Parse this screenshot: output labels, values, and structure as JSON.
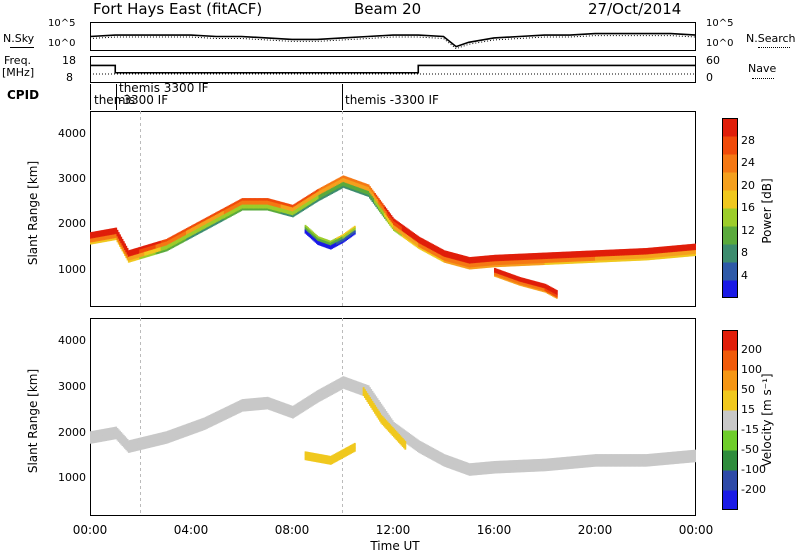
{
  "header": {
    "station": "Fort Hays East (fitACF)",
    "beam": "Beam 20",
    "date": "27/Oct/2014"
  },
  "noise_panel": {
    "left_label": "N.Sky",
    "right_label": "N.Search",
    "tick_top": "10^5",
    "tick_bottom": "10^0"
  },
  "freq_panel": {
    "left_label_1": "Freq.",
    "left_label_2": "[MHz]",
    "left_tick_top": "18",
    "left_tick_bottom": "8",
    "right_label": "Nave",
    "right_tick_top": "60",
    "right_tick_bottom": "0"
  },
  "cpid": {
    "label": "CPID",
    "segments": [
      "themis",
      "themis 3300 IF\n-3300 IF",
      "themis -3300 IF"
    ]
  },
  "x_axis": {
    "label": "Time UT",
    "ticks": [
      "00:00",
      "04:00",
      "08:00",
      "12:00",
      "16:00",
      "20:00",
      "00:00"
    ]
  },
  "power_panel": {
    "ylabel": "Slant Range [km]",
    "yticks": [
      "1000",
      "2000",
      "3000",
      "4000"
    ],
    "colorbar_label": "Power [dB]",
    "colorbar_ticks": [
      "4",
      "8",
      "12",
      "16",
      "20",
      "24",
      "28"
    ],
    "colors": [
      "#1a1ae6",
      "#2e5aa8",
      "#3c8c6e",
      "#5aaa3c",
      "#9ccd2a",
      "#f0c81e",
      "#f5a01e",
      "#f57814",
      "#f04a0a",
      "#e01e0a"
    ]
  },
  "velocity_panel": {
    "ylabel": "Slant Range [km]",
    "yticks": [
      "1000",
      "2000",
      "3000",
      "4000"
    ],
    "colorbar_label": "Velocity [m s⁻¹]",
    "colorbar_ticks": [
      "200",
      "100",
      "50",
      "15",
      "-15",
      "-50",
      "-100",
      "-200"
    ],
    "colors": [
      "#1a1ae6",
      "#2e4aa8",
      "#2e8c3c",
      "#6ecd2a",
      "#c8c8c8",
      "#f0c81e",
      "#f59614",
      "#f05a0a",
      "#e01e0a"
    ]
  },
  "chart_data": [
    {
      "type": "line",
      "title": "",
      "xlabel": "Time UT",
      "series": [
        {
          "name": "N.Sky",
          "x": [
            0,
            1,
            2,
            3,
            4,
            5,
            6,
            7,
            8,
            9,
            10,
            11,
            12,
            13,
            14,
            14.5,
            15,
            16,
            17,
            18,
            19,
            20,
            21,
            22,
            23,
            24
          ],
          "y_relative": [
            0.5,
            0.55,
            0.55,
            0.55,
            0.55,
            0.5,
            0.5,
            0.45,
            0.4,
            0.4,
            0.45,
            0.5,
            0.55,
            0.55,
            0.5,
            0.15,
            0.3,
            0.45,
            0.5,
            0.55,
            0.55,
            0.6,
            0.6,
            0.6,
            0.6,
            0.55
          ]
        }
      ]
    },
    {
      "type": "line",
      "title": "",
      "ylabel": "Freq. [MHz]",
      "ylim": [
        8,
        18
      ],
      "series": [
        {
          "name": "Freq.",
          "x": [
            0,
            1,
            1,
            13,
            13,
            24
          ],
          "y": [
            14.5,
            14.5,
            11.8,
            11.8,
            14.5,
            14.5
          ]
        }
      ]
    },
    {
      "type": "heatmap",
      "title": "",
      "xlabel": "Time UT",
      "ylabel": "Slant Range [km]",
      "xlim": [
        0,
        24
      ],
      "ylim": [
        180,
        4500
      ],
      "color_label": "Power [dB]",
      "color_range": [
        0,
        30
      ],
      "bands": [
        {
          "t": [
            0,
            1,
            1.5,
            3,
            4.5,
            6,
            7,
            8,
            9,
            10,
            11,
            12,
            13,
            14,
            15,
            16,
            18,
            20,
            22,
            24
          ],
          "range_km": [
            1700,
            1800,
            1300,
            1550,
            2000,
            2450,
            2450,
            2300,
            2650,
            2950,
            2750,
            2000,
            1600,
            1300,
            1150,
            1200,
            1250,
            1300,
            1350,
            1450
          ],
          "power_db": [
            25,
            25,
            25,
            18,
            16,
            18,
            18,
            16,
            16,
            14,
            14,
            22,
            25,
            26,
            27,
            27,
            26,
            25,
            24,
            24
          ]
        },
        {
          "t": [
            16,
            17,
            18,
            18.5
          ],
          "range_km": [
            950,
            750,
            600,
            450
          ],
          "power_db": [
            26,
            27,
            28,
            28
          ]
        },
        {
          "t": [
            8.5,
            9,
            9.5,
            10,
            10.5
          ],
          "range_km": [
            1900,
            1650,
            1550,
            1700,
            1900
          ],
          "power_db": [
            6,
            6,
            6,
            8,
            8
          ]
        }
      ]
    },
    {
      "type": "heatmap",
      "title": "",
      "xlabel": "Time UT",
      "ylabel": "Slant Range [km]",
      "xlim": [
        0,
        24
      ],
      "ylim": [
        180,
        4500
      ],
      "color_label": "Velocity [m s⁻¹]",
      "color_range": [
        -200,
        200
      ],
      "bands": [
        {
          "t": [
            0,
            1,
            1.5,
            3,
            4.5,
            6,
            7,
            8,
            9,
            10,
            11,
            12,
            13,
            14,
            15,
            16,
            18,
            20,
            22,
            24
          ],
          "range_km": [
            1900,
            2000,
            1700,
            1900,
            2200,
            2600,
            2650,
            2450,
            2800,
            3100,
            2900,
            2100,
            1700,
            1400,
            1200,
            1250,
            1300,
            1400,
            1400,
            1500
          ],
          "velocity": [
            0,
            0,
            0,
            0,
            0,
            0,
            0,
            0,
            0,
            0,
            0,
            0,
            0,
            0,
            0,
            0,
            0,
            0,
            0,
            0
          ]
        },
        {
          "t": [
            10.8,
            11.5,
            12.5
          ],
          "range_km": [
            2900,
            2300,
            1700
          ],
          "velocity": [
            30,
            35,
            30
          ]
        },
        {
          "t": [
            8.5,
            9.5,
            10.5
          ],
          "range_km": [
            1500,
            1400,
            1700
          ],
          "velocity": [
            40,
            40,
            35
          ]
        }
      ]
    }
  ]
}
